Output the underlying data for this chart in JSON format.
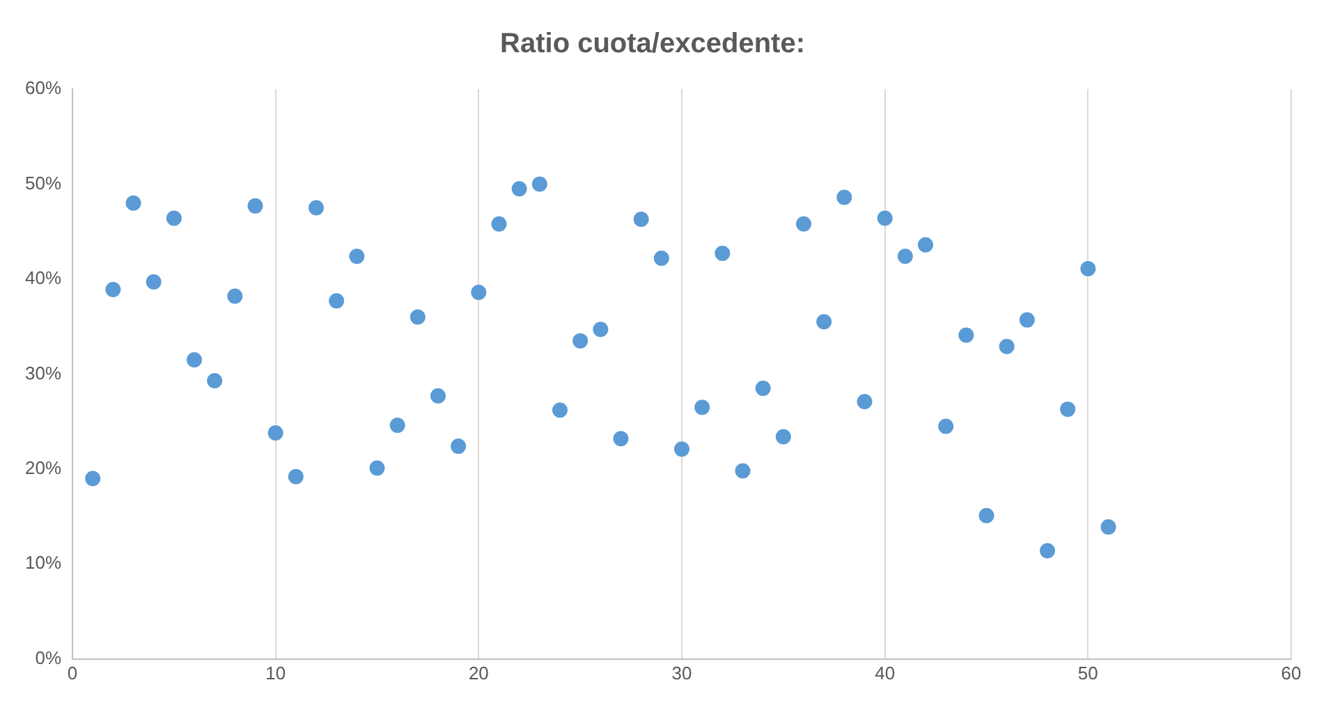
{
  "chart_data": {
    "type": "scatter",
    "title": "Ratio cuota/excedente:",
    "x": [
      1,
      2,
      3,
      4,
      5,
      6,
      7,
      8,
      9,
      10,
      11,
      12,
      13,
      14,
      15,
      16,
      17,
      18,
      19,
      20,
      21,
      22,
      23,
      24,
      25,
      26,
      27,
      28,
      29,
      30,
      31,
      32,
      33,
      34,
      35,
      36,
      37,
      38,
      39,
      40,
      41,
      42,
      43,
      44,
      45,
      46,
      47,
      48,
      49,
      50,
      51
    ],
    "series": [
      {
        "color": "#5b9bd5",
        "values": [
          19.0,
          38.9,
          48.0,
          39.7,
          46.4,
          31.5,
          29.3,
          38.2,
          47.7,
          23.8,
          19.2,
          47.5,
          37.7,
          42.4,
          20.1,
          24.6,
          36.0,
          27.7,
          22.4,
          38.6,
          45.8,
          49.5,
          50.0,
          26.2,
          33.5,
          34.7,
          23.2,
          46.3,
          42.2,
          22.1,
          26.5,
          42.7,
          19.8,
          28.5,
          23.4,
          45.8,
          35.5,
          48.6,
          27.1,
          46.4,
          42.4,
          43.6,
          24.5,
          34.1,
          15.1,
          32.9,
          35.7,
          11.4,
          26.3,
          41.1,
          13.9
        ]
      }
    ],
    "xlim": [
      0,
      60
    ],
    "xticks": [
      0,
      10,
      20,
      30,
      40,
      50,
      60
    ],
    "ylim": [
      0,
      60
    ],
    "yticks": [
      {
        "value": 0,
        "label": "0%"
      },
      {
        "value": 10,
        "label": "10%"
      },
      {
        "value": 20,
        "label": "20%"
      },
      {
        "value": 30,
        "label": "30%"
      },
      {
        "value": 40,
        "label": "40%"
      },
      {
        "value": 50,
        "label": "50%"
      },
      {
        "value": 60,
        "label": "60%"
      }
    ],
    "grid": "x",
    "legend": false,
    "marker": "circle"
  }
}
